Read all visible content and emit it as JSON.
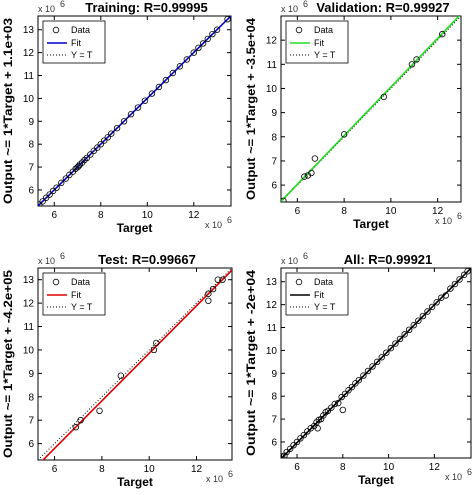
{
  "chart_data": [
    {
      "type": "scatter",
      "title": "Training: R=0.99995",
      "xlabel": "Target",
      "ylabel": "Output ~= 1*Target + 1.1e+03",
      "scale_label": "x 10",
      "scale_exp": "6",
      "xlim": [
        5.3,
        13.6
      ],
      "ylim": [
        5.3,
        13.6
      ],
      "xticks": [
        6,
        8,
        10,
        12
      ],
      "yticks": [
        6,
        7,
        8,
        9,
        10,
        11,
        12,
        13
      ],
      "legend": {
        "position": "top-left",
        "data_label": "Data",
        "fit_label": "Fit",
        "ident_label": "Y = T"
      },
      "fit_color": "#0000cc",
      "points": [
        [
          5.35,
          5.36
        ],
        [
          5.5,
          5.5
        ],
        [
          5.65,
          5.66
        ],
        [
          5.8,
          5.8
        ],
        [
          5.95,
          5.96
        ],
        [
          6.1,
          6.1
        ],
        [
          6.3,
          6.31
        ],
        [
          6.5,
          6.5
        ],
        [
          6.65,
          6.66
        ],
        [
          6.8,
          6.8
        ],
        [
          6.92,
          6.93
        ],
        [
          7.0,
          7.0
        ],
        [
          7.05,
          7.04
        ],
        [
          7.1,
          7.11
        ],
        [
          7.2,
          7.2
        ],
        [
          7.3,
          7.31
        ],
        [
          7.4,
          7.4
        ],
        [
          7.55,
          7.55
        ],
        [
          7.7,
          7.71
        ],
        [
          7.85,
          7.85
        ],
        [
          8.0,
          8.0
        ],
        [
          8.15,
          8.16
        ],
        [
          8.3,
          8.3
        ],
        [
          8.45,
          8.46
        ],
        [
          8.7,
          8.7
        ],
        [
          9.0,
          9.0
        ],
        [
          9.3,
          9.31
        ],
        [
          9.6,
          9.6
        ],
        [
          9.9,
          9.9
        ],
        [
          10.2,
          10.21
        ],
        [
          10.5,
          10.5
        ],
        [
          10.8,
          10.8
        ],
        [
          11.1,
          11.11
        ],
        [
          11.4,
          11.4
        ],
        [
          11.7,
          11.7
        ],
        [
          12.0,
          12.0
        ],
        [
          12.2,
          12.21
        ],
        [
          12.4,
          12.4
        ],
        [
          12.6,
          12.6
        ],
        [
          12.8,
          12.81
        ],
        [
          13.0,
          13.0
        ],
        [
          13.45,
          13.46
        ]
      ]
    },
    {
      "type": "scatter",
      "title": "Validation: R=0.99927",
      "xlabel": "Target",
      "ylabel": "Output ~= 1*Target + -3.5e+04",
      "scale_label": "x 10",
      "scale_exp": "6",
      "xlim": [
        5.3,
        13.0
      ],
      "ylim": [
        5.3,
        13.0
      ],
      "xticks": [
        6,
        8,
        10,
        12
      ],
      "yticks": [
        6,
        7,
        8,
        9,
        10,
        11,
        12
      ],
      "legend": {
        "position": "top-left",
        "data_label": "Data",
        "fit_label": "Fit",
        "ident_label": "Y = T"
      },
      "fit_color": "#22dd22",
      "points": [
        [
          5.4,
          5.35
        ],
        [
          6.3,
          6.35
        ],
        [
          6.45,
          6.4
        ],
        [
          6.6,
          6.5
        ],
        [
          6.75,
          7.1
        ],
        [
          8.0,
          8.1
        ],
        [
          9.7,
          9.65
        ],
        [
          10.9,
          11.0
        ],
        [
          11.1,
          11.2
        ],
        [
          12.2,
          12.25
        ]
      ]
    },
    {
      "type": "scatter",
      "title": "Test: R=0.99667",
      "xlabel": "Target",
      "ylabel": "Output ~= 1*Target + -4.2e+05",
      "scale_label": "x 10",
      "scale_exp": "6",
      "xlim": [
        5.3,
        13.5
      ],
      "ylim": [
        5.3,
        13.5
      ],
      "xticks": [
        6,
        8,
        10,
        12
      ],
      "yticks": [
        6,
        7,
        8,
        9,
        10,
        11,
        12,
        13
      ],
      "legend": {
        "position": "top-left",
        "data_label": "Data",
        "fit_label": "Fit",
        "ident_label": "Y = T"
      },
      "fit_color": "#dd0000",
      "points": [
        [
          6.9,
          6.7
        ],
        [
          7.1,
          7.0
        ],
        [
          7.9,
          7.4
        ],
        [
          8.8,
          8.9
        ],
        [
          10.2,
          10.0
        ],
        [
          10.3,
          10.3
        ],
        [
          12.5,
          12.1
        ],
        [
          12.5,
          12.4
        ],
        [
          12.7,
          12.6
        ],
        [
          12.9,
          13.0
        ],
        [
          13.1,
          13.0
        ]
      ]
    },
    {
      "type": "scatter",
      "title": "All: R=0.99921",
      "xlabel": "Target",
      "ylabel": "Output ~= 1*Target + -2e+04",
      "scale_label": "x 10",
      "scale_exp": "6",
      "xlim": [
        5.3,
        13.6
      ],
      "ylim": [
        5.3,
        13.6
      ],
      "xticks": [
        6,
        8,
        10,
        12
      ],
      "yticks": [
        6,
        7,
        8,
        9,
        10,
        11,
        12,
        13
      ],
      "legend": {
        "position": "top-left",
        "data_label": "Data",
        "fit_label": "Fit",
        "ident_label": "Y = T"
      },
      "fit_color": "#000000",
      "points": [
        [
          5.35,
          5.36
        ],
        [
          5.45,
          5.4
        ],
        [
          5.55,
          5.56
        ],
        [
          5.7,
          5.7
        ],
        [
          5.85,
          5.86
        ],
        [
          6.0,
          6.0
        ],
        [
          6.15,
          6.16
        ],
        [
          6.3,
          6.3
        ],
        [
          6.45,
          6.46
        ],
        [
          6.6,
          6.6
        ],
        [
          6.75,
          6.7
        ],
        [
          6.85,
          6.86
        ],
        [
          6.95,
          6.96
        ],
        [
          7.05,
          7.0
        ],
        [
          7.15,
          7.16
        ],
        [
          7.25,
          7.3
        ],
        [
          7.35,
          7.36
        ],
        [
          7.5,
          7.5
        ],
        [
          7.65,
          7.66
        ],
        [
          7.8,
          7.7
        ],
        [
          7.95,
          7.96
        ],
        [
          8.1,
          8.1
        ],
        [
          8.25,
          8.26
        ],
        [
          8.4,
          8.4
        ],
        [
          8.55,
          8.56
        ],
        [
          8.7,
          8.7
        ],
        [
          8.9,
          8.9
        ],
        [
          9.1,
          9.1
        ],
        [
          9.3,
          9.3
        ],
        [
          9.5,
          9.5
        ],
        [
          9.7,
          9.7
        ],
        [
          9.9,
          9.9
        ],
        [
          10.1,
          10.1
        ],
        [
          10.3,
          10.3
        ],
        [
          10.5,
          10.5
        ],
        [
          10.7,
          10.7
        ],
        [
          10.9,
          10.9
        ],
        [
          11.1,
          11.1
        ],
        [
          11.3,
          11.3
        ],
        [
          11.5,
          11.5
        ],
        [
          11.7,
          11.7
        ],
        [
          11.9,
          11.9
        ],
        [
          12.1,
          12.1
        ],
        [
          12.3,
          12.3
        ],
        [
          12.5,
          12.4
        ],
        [
          12.7,
          12.7
        ],
        [
          12.9,
          12.9
        ],
        [
          13.1,
          13.1
        ],
        [
          13.3,
          13.3
        ],
        [
          13.45,
          13.46
        ],
        [
          8.0,
          7.4
        ],
        [
          6.9,
          6.6
        ]
      ]
    }
  ]
}
